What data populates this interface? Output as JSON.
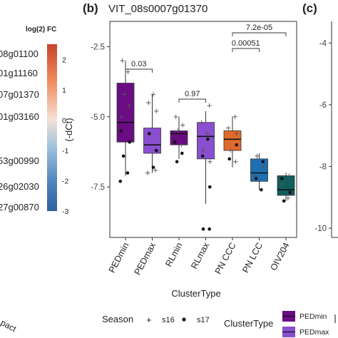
{
  "left_panel": {
    "legend_title": "log(2) FC",
    "legend_ticks": [
      "2",
      "1",
      "0",
      "-1",
      "-2",
      "-3"
    ],
    "legend_colors": [
      "#c8432b",
      "#f08a5d",
      "#f4e0d6",
      "#9fc2de",
      "#4f87bd",
      "#2c5f9e"
    ],
    "gene_labels": [
      "08g01100",
      "01g11160",
      "07g01370",
      "01g03160",
      "53g00990",
      "26g02030",
      "27g00870"
    ],
    "bottom_label": "pact"
  },
  "panel_b": {
    "tag": "(b)",
    "title": "VIT_08s0007g01370",
    "chart_data": {
      "type": "box",
      "ylabel": "(-dCt)",
      "xlabel": "ClusterType",
      "ylim": [
        -9.3,
        -1.6
      ],
      "yticks": [
        -2.5,
        -5.0,
        -7.5
      ],
      "ytick_labels": [
        "-2.5",
        "-5.0",
        "-7.5"
      ],
      "grid": false,
      "categories": [
        "PEDmin",
        "PEDmax",
        "RLmin",
        "RLmax",
        "PN CCC",
        "PN LCC",
        "OIV204"
      ],
      "colors": [
        "#6a0d83",
        "#8a4fd0",
        "#6a0d83",
        "#8a4fd0",
        "#e06a2b",
        "#1f6fb2",
        "#0f5e5c"
      ],
      "boxes": [
        {
          "q1": -5.9,
          "median": -5.2,
          "q3": -3.8,
          "whisker_low": -7.1,
          "whisker_high": -3.0
        },
        {
          "q1": -6.3,
          "median": -6.0,
          "q3": -5.4,
          "whisker_low": -7.0,
          "whisker_high": -4.2
        },
        {
          "q1": -6.0,
          "median": -5.6,
          "q3": -5.5,
          "whisker_low": -6.5,
          "whisker_high": -5.0
        },
        {
          "q1": -6.5,
          "median": -5.7,
          "q3": -5.2,
          "whisker_low": -8.1,
          "whisker_high": -4.8
        },
        {
          "q1": -6.2,
          "median": -5.8,
          "q3": -5.5,
          "whisker_low": -6.8,
          "whisker_high": -5.0
        },
        {
          "q1": -7.3,
          "median": -7.0,
          "q3": -6.5,
          "whisker_low": -7.6,
          "whisker_high": -6.3
        },
        {
          "q1": -7.8,
          "median": -7.6,
          "q3": -7.1,
          "whisker_low": -8.0,
          "whisker_high": -7.0
        }
      ],
      "points_s16": [
        [
          [
            -3.0,
            -0.16
          ],
          [
            -3.4,
            0.12
          ],
          [
            -4.2,
            -0.05
          ],
          [
            -4.6,
            0.18
          ],
          [
            -5.0,
            -0.2
          ]
        ],
        [
          [
            -4.2,
            0.05
          ],
          [
            -4.5,
            -0.18
          ],
          [
            -4.8,
            0.2
          ],
          [
            -5.6,
            -0.1
          ],
          [
            -6.9,
            0.15
          ],
          [
            -7.0,
            -0.22
          ]
        ],
        [
          [
            -5.0,
            -0.15
          ],
          [
            -5.3,
            0.18
          ],
          [
            -5.5,
            -0.05
          ],
          [
            -6.0,
            0.12
          ]
        ],
        [
          [
            -4.6,
            0.18
          ],
          [
            -5.2,
            -0.2
          ],
          [
            -5.6,
            0.08
          ],
          [
            -6.2,
            -0.12
          ],
          [
            -6.6,
            0.2
          ]
        ],
        [
          [
            -5.0,
            0.12
          ],
          [
            -5.4,
            -0.2
          ],
          [
            -5.6,
            0.2
          ],
          [
            -6.2,
            -0.1
          ],
          [
            -6.6,
            0.15
          ]
        ],
        [
          [
            -6.4,
            -0.1
          ],
          [
            -6.8,
            0.2
          ],
          [
            -7.1,
            -0.2
          ]
        ],
        [
          [
            -7.1,
            0.15
          ],
          [
            -7.4,
            -0.18
          ],
          [
            -7.9,
            0.1
          ]
        ]
      ],
      "points_s17": [
        [
          [
            -5.5,
            -0.22
          ],
          [
            -5.9,
            0.2
          ],
          [
            -6.4,
            -0.1
          ],
          [
            -7.0,
            0.1
          ],
          [
            -7.3,
            -0.25
          ]
        ],
        [
          [
            -5.6,
            -0.15
          ],
          [
            -6.2,
            0.2
          ],
          [
            -6.8,
            0.05
          ]
        ],
        [
          [
            -5.9,
            -0.2
          ],
          [
            -6.3,
            0.15
          ],
          [
            -6.6,
            -0.1
          ]
        ],
        [
          [
            -5.8,
            0.1
          ],
          [
            -6.4,
            -0.15
          ],
          [
            -7.5,
            0.2
          ],
          [
            -9.0,
            -0.12
          ],
          [
            -9.0,
            0.18
          ]
        ],
        [
          [
            -6.0,
            0.2
          ],
          [
            -6.5,
            -0.15
          ]
        ],
        [
          [
            -6.6,
            0.18
          ],
          [
            -7.2,
            -0.15
          ],
          [
            -7.6,
            0.1
          ]
        ],
        [
          [
            -7.2,
            -0.2
          ],
          [
            -7.7,
            0.2
          ],
          [
            -8.0,
            -0.1
          ]
        ]
      ],
      "comparisons": [
        {
          "from": 0,
          "to": 1,
          "label": "0.03",
          "y": -2.1
        },
        {
          "from": 2,
          "to": 3,
          "label": "0.97",
          "y": -3.2
        },
        {
          "from": 4,
          "to": 5,
          "label": "0.00051",
          "y": -1.6
        },
        {
          "from": 4,
          "to": 6,
          "label": "7.2e-05",
          "y": -0.9
        }
      ]
    }
  },
  "panel_c": {
    "tag": "(c)",
    "ytick_labels": [
      "-4",
      "-6",
      "-8",
      "-10"
    ],
    "yticks": [
      -4,
      -6,
      -8,
      -10
    ],
    "ylim": [
      -10.3,
      -3.3
    ]
  },
  "legend": {
    "season_title": "Season",
    "season_items": [
      {
        "symbol": "+",
        "label": "s16"
      },
      {
        "symbol": "•",
        "label": "s17"
      }
    ],
    "cluster_title": "ClusterType",
    "cluster_items": [
      {
        "label": "PEDmin",
        "color": "#6a0d83"
      },
      {
        "label": "PEDmax",
        "color": "#8a4fd0"
      }
    ]
  }
}
